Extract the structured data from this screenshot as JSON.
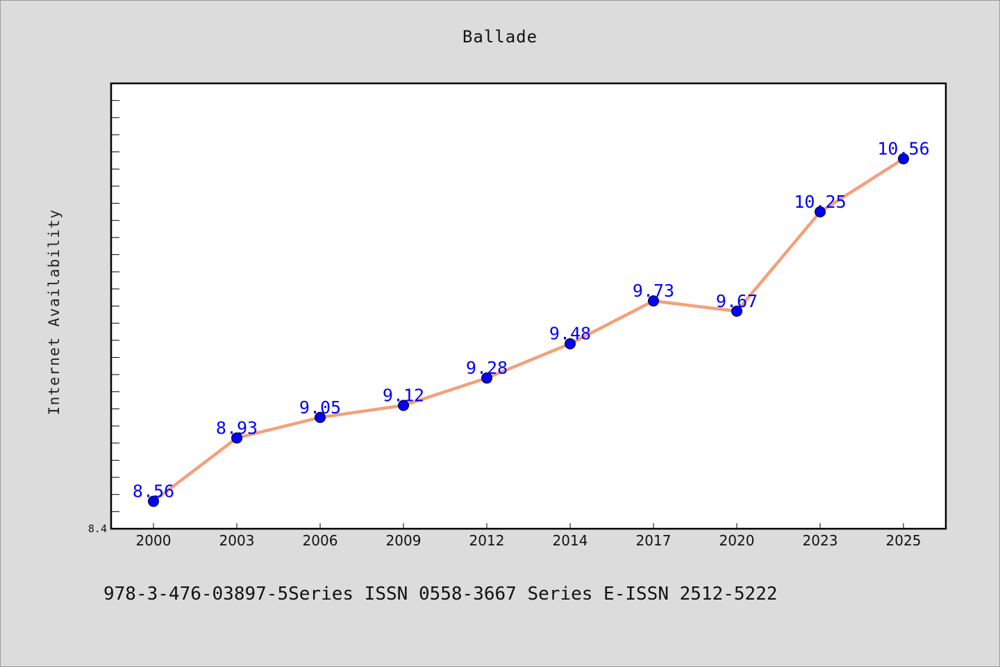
{
  "chart_data": {
    "type": "line",
    "title": "Ballade",
    "xlabel": "",
    "ylabel": "Internet Availability",
    "categories": [
      "2000",
      "2003",
      "2006",
      "2009",
      "2012",
      "2014",
      "2017",
      "2020",
      "2023",
      "2025"
    ],
    "series": [
      {
        "values": [
          8.56,
          8.93,
          9.05,
          9.12,
          9.28,
          9.48,
          9.73,
          9.67,
          10.25,
          10.56
        ],
        "line_color": "#f4a07a",
        "marker_color": "#0000ff"
      }
    ],
    "data_labels": [
      "8.56",
      "8.93",
      "9.05",
      "9.12",
      "9.28",
      "9.48",
      "9.73",
      "9.67",
      "10.25",
      "10.56"
    ],
    "ylim": [
      8.4,
      11.0
    ],
    "yticks_labeled": [
      "8.4"
    ],
    "grid": false,
    "legend": "none"
  },
  "footer": {
    "text": "978-3-476-03897-5Series ISSN 0558-3667 Series E-ISSN 2512-5222"
  },
  "colors": {
    "background": "#dcdcdc",
    "plot_background": "#ffffff",
    "line": "#f4a07a",
    "marker": "#0000ff",
    "data_label": "#0000ff"
  }
}
